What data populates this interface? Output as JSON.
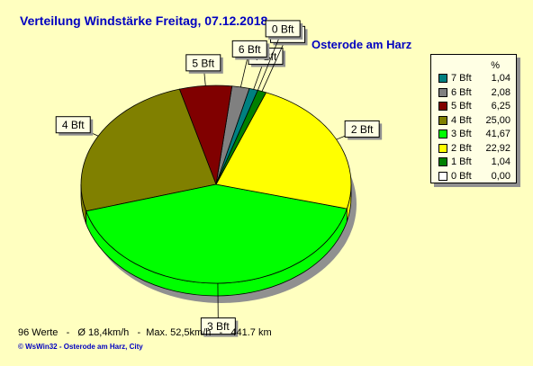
{
  "title": "Verteilung Windstärke  Freitag, 07.12.2018",
  "location": "Osterode am Harz",
  "legend_header": "%",
  "footer": "96 Werte   -   Ø 18,4km/h   -  Max. 52,5km/h   -   441.7 km",
  "credit": "© WsWin32  -  Osterode am Harz, City",
  "chart_data": {
    "type": "pie",
    "slices": [
      {
        "label": "7 Bft",
        "value": 1.04,
        "value_text": "1,04",
        "color": "#008080"
      },
      {
        "label": "6 Bft",
        "value": 2.08,
        "value_text": "2,08",
        "color": "#808080"
      },
      {
        "label": "5 Bft",
        "value": 6.25,
        "value_text": "6,25",
        "color": "#800000"
      },
      {
        "label": "4 Bft",
        "value": 25.0,
        "value_text": "25,00",
        "color": "#808000"
      },
      {
        "label": "3 Bft",
        "value": 41.67,
        "value_text": "41,67",
        "color": "#00ff00"
      },
      {
        "label": "2 Bft",
        "value": 22.92,
        "value_text": "22,92",
        "color": "#ffff00"
      },
      {
        "label": "1 Bft",
        "value": 1.04,
        "value_text": "1,04",
        "color": "#008000"
      },
      {
        "label": "0 Bft",
        "value": 0.0,
        "value_text": "0,00",
        "color": "#ffffff"
      }
    ]
  }
}
